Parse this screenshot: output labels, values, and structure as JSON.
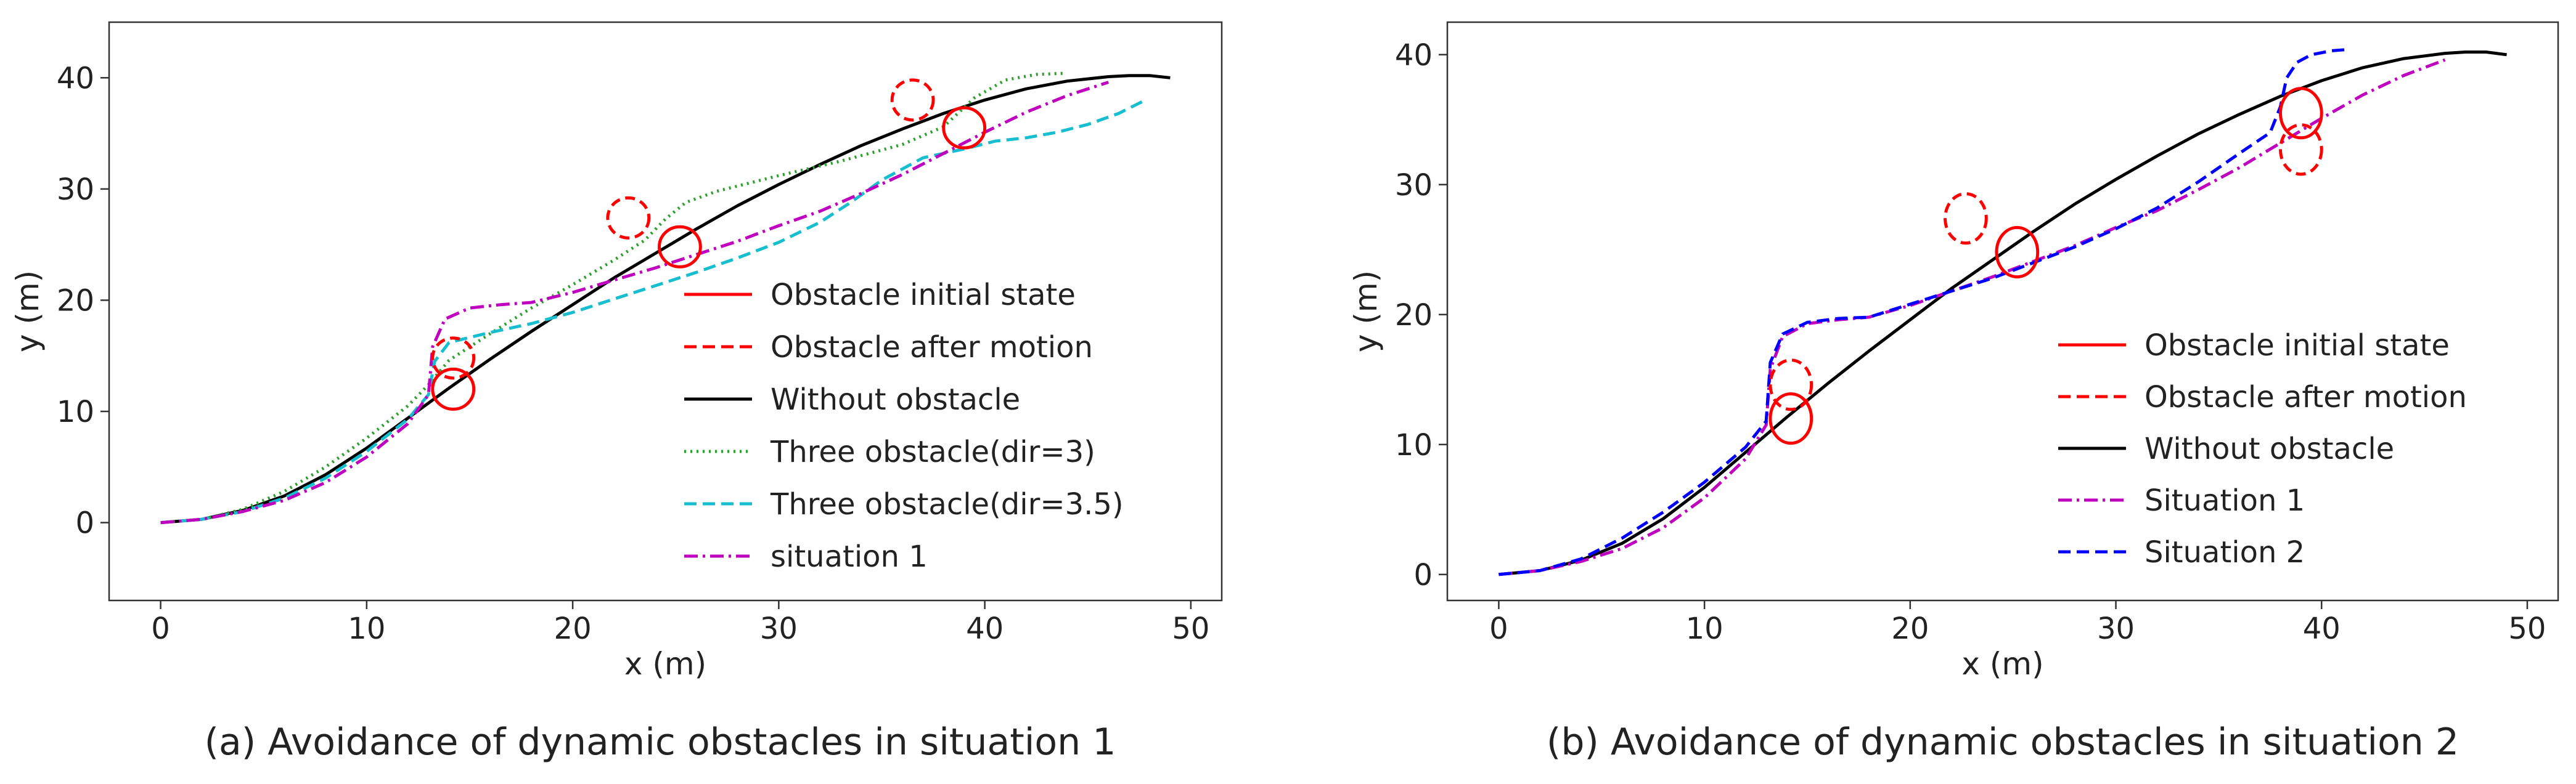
{
  "chart_data": [
    {
      "type": "line",
      "caption": "(a) Avoidance of dynamic obstacles in situation 1",
      "xlabel": "x (m)",
      "ylabel": "y (m)",
      "xlim": [
        -2.5,
        51.5
      ],
      "ylim": [
        -7,
        45
      ],
      "xticks": [
        0,
        10,
        20,
        30,
        40,
        50
      ],
      "yticks": [
        0,
        10,
        20,
        30,
        40
      ],
      "xtick_labels": [
        "0",
        "10",
        "20",
        "30",
        "40",
        "50"
      ],
      "ytick_labels": [
        "0",
        "10",
        "20",
        "30",
        "40"
      ],
      "grid": false,
      "legend_position": "lower-right",
      "obstacles_initial": [
        {
          "cx": 14.2,
          "cy": 12.0,
          "rx": 1.0,
          "ry": 1.8
        },
        {
          "cx": 25.2,
          "cy": 24.8,
          "rx": 1.0,
          "ry": 1.8
        },
        {
          "cx": 39.0,
          "cy": 35.5,
          "rx": 1.0,
          "ry": 1.8
        }
      ],
      "obstacles_after": [
        {
          "cx": 14.2,
          "cy": 14.8,
          "rx": 1.0,
          "ry": 1.8
        },
        {
          "cx": 22.7,
          "cy": 27.4,
          "rx": 1.0,
          "ry": 1.8
        },
        {
          "cx": 36.5,
          "cy": 38.0,
          "rx": 1.0,
          "ry": 1.8
        }
      ],
      "series": [
        {
          "name": "Obstacle initial state",
          "kind": "obstacle_initial",
          "color": "#ff0000",
          "dash": "",
          "x": [],
          "y": []
        },
        {
          "name": "Obstacle after motion",
          "kind": "obstacle_after",
          "color": "#ff0000",
          "dash": "dashed",
          "x": [],
          "y": []
        },
        {
          "name": "Without obstacle",
          "color": "#000000",
          "dash": "",
          "x": [
            0,
            2,
            4,
            6,
            8,
            10,
            12,
            14,
            16,
            18,
            20,
            22,
            24,
            26,
            28,
            30,
            32,
            34,
            36,
            38,
            40,
            42,
            44,
            46,
            47,
            48,
            49
          ],
          "y": [
            0,
            0.3,
            1.1,
            2.4,
            4.3,
            6.7,
            9.4,
            12.1,
            14.7,
            17.2,
            19.6,
            22.0,
            24.2,
            26.4,
            28.5,
            30.4,
            32.2,
            33.9,
            35.4,
            36.8,
            38.0,
            39.0,
            39.7,
            40.1,
            40.2,
            40.2,
            40.0
          ]
        },
        {
          "name": "Three obstacle(dir=3)",
          "color": "#2ca02c",
          "dash": "dotted",
          "x": [
            0,
            2,
            4,
            6,
            8,
            10,
            12,
            13,
            14,
            16,
            18,
            20,
            22,
            23.5,
            24.5,
            25.5,
            27,
            30,
            33,
            36,
            38,
            39.5,
            41,
            42.5,
            43.8
          ],
          "y": [
            0,
            0.3,
            1.2,
            2.8,
            5.0,
            7.6,
            10.5,
            12.4,
            14.6,
            17.0,
            19.3,
            21.4,
            23.6,
            25.4,
            27.3,
            28.8,
            29.8,
            31.2,
            32.5,
            34.0,
            35.6,
            38.2,
            39.8,
            40.3,
            40.4
          ]
        },
        {
          "name": "Three obstacle(dir=3.5)",
          "color": "#17becf",
          "dash": "dashed",
          "x": [
            0,
            2,
            4,
            6,
            8,
            10,
            12,
            13.0,
            13.3,
            14,
            16,
            18,
            20,
            22,
            24,
            26,
            28,
            30,
            32,
            33.5,
            35,
            37,
            39,
            40.5,
            42,
            43.5,
            45,
            46.5,
            47.8
          ],
          "y": [
            0,
            0.3,
            1.0,
            2.2,
            4.0,
            6.4,
            9.3,
            11.5,
            14.5,
            16.2,
            17.1,
            17.9,
            18.9,
            20.1,
            21.3,
            22.5,
            23.8,
            25.2,
            27.0,
            28.8,
            30.8,
            32.8,
            33.6,
            34.3,
            34.6,
            35.1,
            35.8,
            36.8,
            38.0
          ]
        },
        {
          "name": "situation 1",
          "color": "#bf00bf",
          "dash": "dashdot",
          "x": [
            0,
            2,
            4,
            6,
            8,
            10,
            12,
            13.0,
            13.2,
            13.8,
            15,
            16.5,
            18,
            20,
            22,
            24,
            26,
            28,
            30,
            32,
            34,
            36,
            38,
            40,
            42,
            44,
            46
          ],
          "y": [
            0,
            0.3,
            1.0,
            2.0,
            3.6,
            5.9,
            8.9,
            11.5,
            15.8,
            18.3,
            19.3,
            19.6,
            19.8,
            20.7,
            21.8,
            22.9,
            24.1,
            25.3,
            26.7,
            28.0,
            29.6,
            31.3,
            33.2,
            35.1,
            36.9,
            38.4,
            39.6
          ]
        }
      ]
    },
    {
      "type": "line",
      "caption": "(b) Avoidance of dynamic obstacles in situation 2",
      "xlabel": "x (m)",
      "ylabel": "y (m)",
      "xlim": [
        -2.5,
        51.5
      ],
      "ylim": [
        -2,
        42.5
      ],
      "xticks": [
        0,
        10,
        20,
        30,
        40,
        50
      ],
      "yticks": [
        0,
        10,
        20,
        30,
        40
      ],
      "xtick_labels": [
        "0",
        "10",
        "20",
        "30",
        "40",
        "50"
      ],
      "ytick_labels": [
        "0",
        "10",
        "20",
        "30",
        "40"
      ],
      "grid": false,
      "legend_position": "lower-right",
      "obstacles_initial": [
        {
          "cx": 14.2,
          "cy": 12.0,
          "rx": 1.0,
          "ry": 1.9
        },
        {
          "cx": 25.2,
          "cy": 24.8,
          "rx": 1.0,
          "ry": 1.9
        },
        {
          "cx": 39.0,
          "cy": 35.5,
          "rx": 1.0,
          "ry": 1.9
        }
      ],
      "obstacles_after": [
        {
          "cx": 14.2,
          "cy": 14.6,
          "rx": 1.0,
          "ry": 1.9
        },
        {
          "cx": 22.7,
          "cy": 27.4,
          "rx": 1.0,
          "ry": 1.9
        },
        {
          "cx": 39.0,
          "cy": 32.7,
          "rx": 1.0,
          "ry": 1.9
        }
      ],
      "series": [
        {
          "name": "Obstacle initial state",
          "kind": "obstacle_initial",
          "color": "#ff0000",
          "dash": "",
          "x": [],
          "y": []
        },
        {
          "name": "Obstacle after motion",
          "kind": "obstacle_after",
          "color": "#ff0000",
          "dash": "dashed",
          "x": [],
          "y": []
        },
        {
          "name": "Without obstacle",
          "color": "#000000",
          "dash": "",
          "x": [
            0,
            2,
            4,
            6,
            8,
            10,
            12,
            14,
            16,
            18,
            20,
            22,
            24,
            26,
            28,
            30,
            32,
            34,
            36,
            38,
            40,
            42,
            44,
            46,
            47,
            48,
            49
          ],
          "y": [
            0,
            0.3,
            1.1,
            2.4,
            4.3,
            6.7,
            9.4,
            12.1,
            14.7,
            17.2,
            19.6,
            22.0,
            24.2,
            26.4,
            28.5,
            30.4,
            32.2,
            33.9,
            35.4,
            36.8,
            38.0,
            39.0,
            39.7,
            40.1,
            40.2,
            40.2,
            40.0
          ]
        },
        {
          "name": "Situation 1",
          "color": "#bf00bf",
          "dash": "dashdot",
          "x": [
            0,
            2,
            4,
            6,
            8,
            10,
            12,
            13.0,
            13.2,
            13.8,
            15,
            16.5,
            18,
            20,
            22,
            24,
            26,
            28,
            30,
            32,
            34,
            36,
            38,
            40,
            42,
            44,
            46
          ],
          "y": [
            0,
            0.3,
            1.0,
            2.0,
            3.6,
            5.9,
            8.9,
            11.5,
            15.8,
            18.3,
            19.3,
            19.6,
            19.8,
            20.7,
            21.8,
            22.9,
            24.1,
            25.3,
            26.7,
            28.0,
            29.6,
            31.3,
            33.2,
            35.1,
            36.9,
            38.4,
            39.6
          ]
        },
        {
          "name": "Situation 2",
          "color": "#0000ff",
          "dash": "dashed",
          "x": [
            0,
            2,
            4,
            6,
            8,
            10,
            12,
            13.0,
            13.2,
            13.8,
            15,
            16.5,
            18,
            20,
            22,
            24,
            26,
            28,
            30,
            32,
            34,
            36,
            37.5,
            38.0,
            38.3,
            38.8,
            39.5,
            40.5,
            41.3
          ],
          "y": [
            0,
            0.3,
            1.2,
            2.8,
            4.8,
            7.1,
            9.8,
            11.8,
            16.3,
            18.5,
            19.4,
            19.7,
            19.8,
            20.8,
            21.8,
            22.8,
            24.0,
            25.2,
            26.6,
            28.2,
            30.2,
            32.4,
            34.0,
            36.0,
            38.2,
            39.4,
            40.0,
            40.3,
            40.4
          ]
        }
      ]
    }
  ]
}
